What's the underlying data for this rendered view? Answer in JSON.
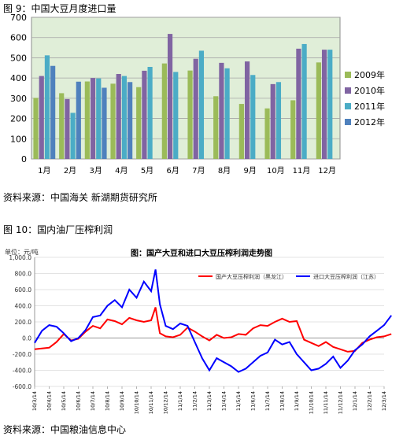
{
  "figure1": {
    "caption": "图 9：中国大豆月度进口量",
    "source": "资料来源：中国海关 新湖期货研究所"
  },
  "figure2": {
    "caption": "图 10：国内油厂压榨利润",
    "source": "资料来源：中国粮油信息中心"
  },
  "chart_data": [
    {
      "type": "bar",
      "title": "",
      "categories": [
        "1月",
        "2月",
        "3月",
        "4月",
        "5月",
        "6月",
        "7月",
        "8月",
        "9月",
        "10月",
        "11月",
        "12月"
      ],
      "ylim": [
        0,
        700
      ],
      "yticks": [
        0,
        100,
        200,
        300,
        400,
        500,
        600,
        700
      ],
      "grid": true,
      "legend_position": "right",
      "colors": {
        "2009年": "#9bbb59",
        "2010年": "#8064a2",
        "2011年": "#4bacc6",
        "2012年": "#4f81bd",
        "plot_bg": "#e0eed8"
      },
      "series": [
        {
          "name": "2009年",
          "values": [
            302,
            325,
            383,
            372,
            355,
            472,
            437,
            310,
            272,
            250,
            290,
            477
          ]
        },
        {
          "name": "2010年",
          "values": [
            410,
            296,
            400,
            420,
            436,
            618,
            495,
            475,
            482,
            370,
            545,
            540
          ]
        },
        {
          "name": "2011年",
          "values": [
            512,
            228,
            398,
            410,
            455,
            430,
            535,
            448,
            415,
            380,
            568,
            540
          ]
        },
        {
          "name": "2012年",
          "values": [
            460,
            382,
            352,
            380,
            null,
            null,
            null,
            null,
            null,
            null,
            null,
            null
          ]
        }
      ]
    },
    {
      "type": "line",
      "title": "图：国产大豆和进口大豆压榨利润走势图",
      "unit_label": "单位：元/吨",
      "ylim": [
        -600,
        1000
      ],
      "yticks": [
        "-600.0",
        "-400.0",
        "-200.0",
        "0.0",
        "200.0",
        "400.0",
        "600.0",
        "800.0",
        "1,000.0"
      ],
      "x_ticks": [
        "10/3/14",
        "10/4/14",
        "10/5/14",
        "10/6/14",
        "10/7/14",
        "10/8/14",
        "10/9/14",
        "10/10/14",
        "10/11/14",
        "10/12/14",
        "11/1/14",
        "11/2/14",
        "11/3/14",
        "11/4/14",
        "11/5/14",
        "11/6/14",
        "11/7/14",
        "11/8/14",
        "11/9/14",
        "11/10/14",
        "11/11/14",
        "11/12/14",
        "12/1/14",
        "12/2/14",
        "12/3/14"
      ],
      "legend_position": "top-right",
      "colors": {
        "国产大豆压榨利润（黑龙江）": "#ff0000",
        "进口大豆压榨利润（江苏）": "#0000ff"
      },
      "series": [
        {
          "name": "国产大豆压榨利润（黑龙江）",
          "x": [
            0,
            0.5,
            1,
            1.5,
            2,
            2.5,
            3,
            3.5,
            4,
            4.5,
            5,
            5.5,
            6,
            6.5,
            7,
            7.5,
            8,
            8.3,
            8.6,
            9,
            9.5,
            10,
            10.5,
            11,
            11.5,
            12,
            12.5,
            13,
            13.5,
            14,
            14.5,
            15,
            15.5,
            16,
            16.5,
            17,
            17.5,
            18,
            18.5,
            19,
            19.5,
            20,
            20.5,
            21,
            21.5,
            22,
            22.5,
            23,
            23.5,
            24,
            24.5
          ],
          "y": [
            -140,
            -130,
            -120,
            -50,
            50,
            -30,
            -10,
            80,
            150,
            120,
            230,
            210,
            170,
            250,
            220,
            200,
            220,
            380,
            60,
            20,
            10,
            40,
            130,
            80,
            20,
            -30,
            40,
            0,
            10,
            50,
            40,
            120,
            160,
            150,
            200,
            240,
            200,
            210,
            -20,
            -60,
            -100,
            -50,
            -110,
            -140,
            -170,
            -160,
            -60,
            -20,
            10,
            20,
            50
          ]
        },
        {
          "name": "进口大豆压榨利润（江苏）",
          "x": [
            0,
            0.5,
            1,
            1.5,
            2,
            2.5,
            3,
            3.5,
            4,
            4.5,
            5,
            5.5,
            6,
            6.5,
            7,
            7.5,
            8,
            8.3,
            8.6,
            9,
            9.5,
            10,
            10.5,
            11,
            11.5,
            12,
            12.5,
            13,
            13.5,
            14,
            14.5,
            15,
            15.5,
            16,
            16.5,
            17,
            17.5,
            18,
            18.5,
            19,
            19.5,
            20,
            20.5,
            21,
            21.5,
            22,
            22.5,
            23,
            23.5,
            24,
            24.5
          ],
          "y": [
            -60,
            90,
            160,
            140,
            60,
            -40,
            0,
            100,
            260,
            280,
            400,
            470,
            380,
            600,
            500,
            700,
            580,
            850,
            420,
            150,
            110,
            180,
            150,
            -50,
            -250,
            -400,
            -250,
            -300,
            -350,
            -420,
            -380,
            -300,
            -220,
            -180,
            -20,
            -80,
            -50,
            -200,
            -300,
            -400,
            -380,
            -320,
            -230,
            -370,
            -280,
            -150,
            -80,
            20,
            90,
            160,
            280
          ]
        }
      ]
    }
  ]
}
